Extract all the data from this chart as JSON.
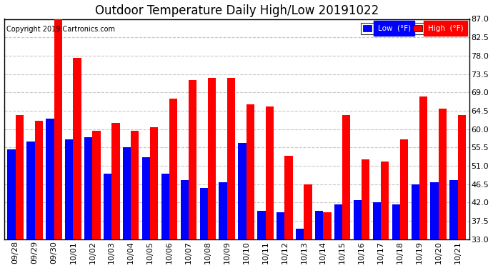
{
  "title": "Outdoor Temperature Daily High/Low 20191022",
  "copyright": "Copyright 2019 Cartronics.com",
  "legend_low": "Low  (°F)",
  "legend_high": "High  (°F)",
  "categories": [
    "09/28",
    "09/29",
    "09/30",
    "10/01",
    "10/02",
    "10/03",
    "10/04",
    "10/05",
    "10/06",
    "10/07",
    "10/08",
    "10/09",
    "10/10",
    "10/11",
    "10/12",
    "10/13",
    "10/14",
    "10/15",
    "10/16",
    "10/17",
    "10/18",
    "10/19",
    "10/20",
    "10/21"
  ],
  "high_values": [
    63.5,
    62.0,
    87.0,
    77.5,
    59.5,
    61.5,
    59.5,
    60.5,
    67.5,
    72.0,
    72.5,
    72.5,
    66.0,
    65.5,
    53.5,
    46.5,
    39.5,
    63.5,
    52.5,
    52.0,
    57.5,
    68.0,
    65.0,
    63.5
  ],
  "low_values": [
    55.0,
    57.0,
    62.5,
    57.5,
    58.0,
    49.0,
    55.5,
    53.0,
    49.0,
    47.5,
    45.5,
    47.0,
    56.5,
    40.0,
    39.5,
    35.5,
    40.0,
    41.5,
    42.5,
    42.0,
    41.5,
    46.5,
    47.0,
    47.5
  ],
  "high_color": "#ff0000",
  "low_color": "#0000ff",
  "bg_color": "#ffffff",
  "grid_color": "#c8c8c8",
  "ylim_min": 33.0,
  "ylim_max": 87.0,
  "yticks": [
    33.0,
    37.5,
    42.0,
    46.5,
    51.0,
    55.5,
    60.0,
    64.5,
    69.0,
    73.5,
    78.0,
    82.5,
    87.0
  ],
  "title_fontsize": 12,
  "tick_fontsize": 8,
  "bar_width": 0.42
}
